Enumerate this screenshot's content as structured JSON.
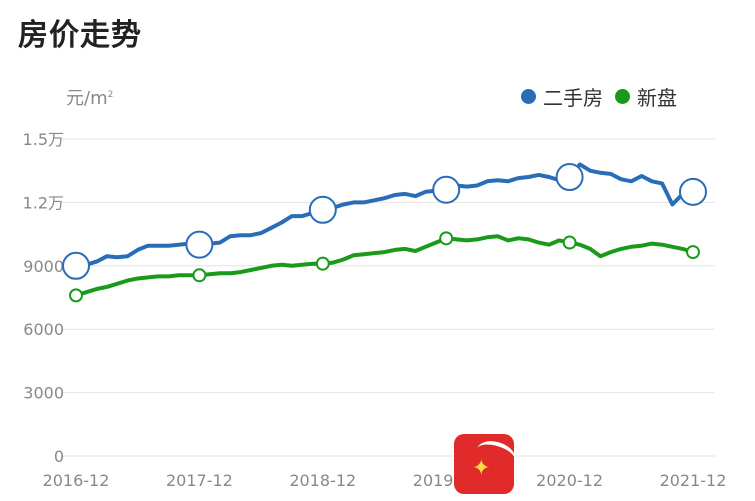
{
  "page": {
    "title": "房价走势",
    "unit": "元/m",
    "unit_sup": "2"
  },
  "legend": [
    {
      "label": "二手房",
      "color": "#2a6db7"
    },
    {
      "label": "新盘",
      "color": "#1a9a1a"
    }
  ],
  "chart_data": {
    "type": "line",
    "title": "房价走势",
    "ylabel": "元/m²",
    "xlabel": "",
    "ylim": [
      0,
      15000
    ],
    "legend_position": "top-right",
    "grid": true,
    "x_ticks": [
      "2016-12",
      "2017-12",
      "2018-12",
      "2019-12",
      "2020-12",
      "2021-12"
    ],
    "y_ticks": [
      {
        "value": 0,
        "label": "0"
      },
      {
        "value": 3000,
        "label": "3000"
      },
      {
        "value": 6000,
        "label": "6000"
      },
      {
        "value": 9000,
        "label": "9000"
      },
      {
        "value": 12000,
        "label": "1.2万"
      },
      {
        "value": 15000,
        "label": "1.5万"
      }
    ],
    "series": [
      {
        "name": "二手房",
        "color": "#2a6db7",
        "x": [
          "2016-12",
          "2017-01",
          "2017-02",
          "2017-03",
          "2017-04",
          "2017-05",
          "2017-06",
          "2017-07",
          "2017-08",
          "2017-09",
          "2017-10",
          "2017-11",
          "2017-12",
          "2018-01",
          "2018-02",
          "2018-03",
          "2018-04",
          "2018-05",
          "2018-06",
          "2018-07",
          "2018-08",
          "2018-09",
          "2018-10",
          "2018-11",
          "2018-12",
          "2019-01",
          "2019-02",
          "2019-03",
          "2019-04",
          "2019-05",
          "2019-06",
          "2019-07",
          "2019-08",
          "2019-09",
          "2019-10",
          "2019-11",
          "2019-12",
          "2020-01",
          "2020-02",
          "2020-03",
          "2020-04",
          "2020-05",
          "2020-06",
          "2020-07",
          "2020-08",
          "2020-09",
          "2020-10",
          "2020-11",
          "2020-12",
          "2021-01",
          "2021-02",
          "2021-03",
          "2021-04",
          "2021-05",
          "2021-06",
          "2021-07",
          "2021-08",
          "2021-09",
          "2021-10",
          "2021-11",
          "2021-12"
        ],
        "values": [
          9000,
          9050,
          9200,
          9450,
          9400,
          9450,
          9750,
          9950,
          9950,
          9950,
          10000,
          10050,
          10000,
          10050,
          10100,
          10400,
          10450,
          10450,
          10550,
          10800,
          11050,
          11350,
          11350,
          11500,
          11650,
          11750,
          11900,
          12000,
          12000,
          12100,
          12200,
          12350,
          12400,
          12300,
          12500,
          12550,
          12600,
          12800,
          12750,
          12800,
          13000,
          13050,
          13000,
          13150,
          13200,
          13300,
          13200,
          13050,
          13200,
          13800,
          13500,
          13400,
          13350,
          13100,
          13000,
          13250,
          13000,
          12900,
          11900,
          12400,
          12500
        ],
        "markers": [
          "2016-12",
          "2017-12",
          "2018-12",
          "2019-12",
          "2020-12",
          "2021-12"
        ]
      },
      {
        "name": "新盘",
        "color": "#1a9a1a",
        "x": [
          "2016-12",
          "2017-01",
          "2017-02",
          "2017-03",
          "2017-04",
          "2017-05",
          "2017-06",
          "2017-07",
          "2017-08",
          "2017-09",
          "2017-10",
          "2017-11",
          "2017-12",
          "2018-01",
          "2018-02",
          "2018-03",
          "2018-04",
          "2018-05",
          "2018-06",
          "2018-07",
          "2018-08",
          "2018-09",
          "2018-10",
          "2018-11",
          "2018-12",
          "2019-01",
          "2019-02",
          "2019-03",
          "2019-04",
          "2019-05",
          "2019-06",
          "2019-07",
          "2019-08",
          "2019-09",
          "2019-10",
          "2019-11",
          "2019-12",
          "2020-01",
          "2020-02",
          "2020-03",
          "2020-04",
          "2020-05",
          "2020-06",
          "2020-07",
          "2020-08",
          "2020-09",
          "2020-10",
          "2020-11",
          "2020-12",
          "2021-01",
          "2021-02",
          "2021-03",
          "2021-04",
          "2021-05",
          "2021-06",
          "2021-07",
          "2021-08",
          "2021-09",
          "2021-10",
          "2021-11",
          "2021-12"
        ],
        "values": [
          7600,
          7750,
          7900,
          8000,
          8150,
          8300,
          8400,
          8450,
          8500,
          8500,
          8550,
          8550,
          8550,
          8600,
          8650,
          8650,
          8700,
          8800,
          8900,
          9000,
          9050,
          9000,
          9050,
          9100,
          9100,
          9150,
          9300,
          9500,
          9550,
          9600,
          9650,
          9750,
          9800,
          9700,
          9900,
          10100,
          10300,
          10250,
          10200,
          10250,
          10350,
          10400,
          10200,
          10300,
          10250,
          10100,
          10000,
          10200,
          10100,
          10000,
          9800,
          9450,
          9650,
          9800,
          9900,
          9950,
          10050,
          10000,
          9900,
          9800,
          9650
        ],
        "markers": [
          "2016-12",
          "2017-12",
          "2018-12",
          "2019-12",
          "2020-12",
          "2021-12"
        ]
      }
    ]
  }
}
